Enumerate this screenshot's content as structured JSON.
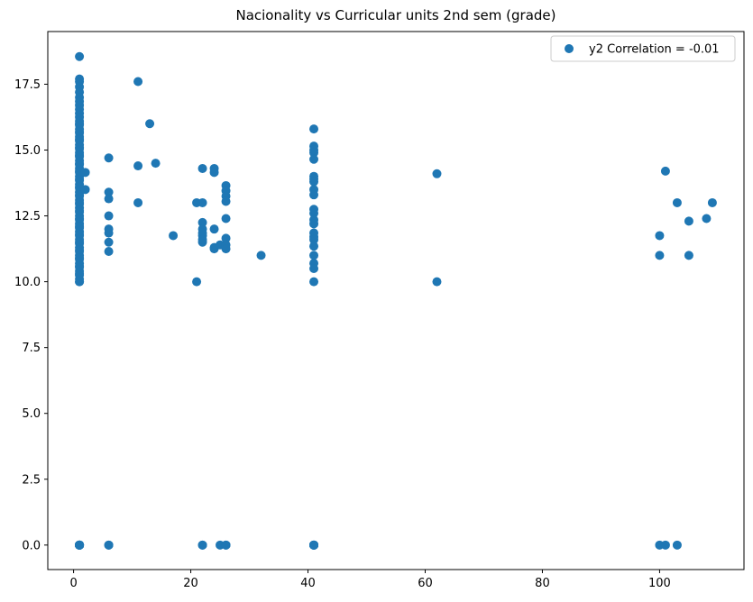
{
  "chart_data": {
    "type": "scatter",
    "title": "Nacionality vs Curricular units 2nd sem (grade)",
    "xlabel": "",
    "ylabel": "",
    "xlim": [
      -4.4,
      114.4
    ],
    "ylim": [
      -0.93,
      19.5
    ],
    "xticks": [
      0,
      20,
      40,
      60,
      80,
      100
    ],
    "xtick_labels": [
      "0",
      "20",
      "40",
      "60",
      "80",
      "100"
    ],
    "yticks": [
      0,
      2.5,
      5,
      7.5,
      10,
      12.5,
      15,
      17.5
    ],
    "ytick_labels": [
      "0.0",
      "2.5",
      "5.0",
      "7.5",
      "10.0",
      "12.5",
      "15.0",
      "17.5"
    ],
    "grid": false,
    "legend_position": "top-right",
    "series": [
      {
        "name": "y2 Correlation = -0.01",
        "color": "#1f77b4",
        "x": [
          1,
          1,
          1,
          1,
          1,
          1,
          1,
          1,
          1,
          1,
          1,
          1,
          1,
          1,
          1,
          1,
          1,
          1,
          1,
          1,
          1,
          1,
          1,
          1,
          1,
          1,
          1,
          1,
          1,
          1,
          1,
          1,
          1,
          1,
          1,
          1,
          1,
          1,
          1,
          1,
          1,
          1,
          1,
          1,
          1,
          1,
          1,
          1,
          1,
          1,
          1,
          1,
          1,
          1,
          1,
          1,
          1,
          1,
          1,
          1,
          1,
          1,
          1,
          1,
          1,
          1,
          1,
          1,
          1,
          1,
          1,
          1,
          1,
          1,
          1,
          1,
          1,
          1,
          1,
          1,
          1,
          1,
          1,
          1,
          1,
          1,
          1,
          1,
          1,
          1,
          2,
          2,
          6,
          6,
          6,
          6,
          6,
          6,
          6,
          6,
          6,
          6,
          11,
          11,
          11,
          13,
          14,
          17,
          21,
          21,
          22,
          22,
          22,
          22,
          22,
          22,
          22,
          22,
          22,
          22,
          24,
          24,
          24,
          24,
          24,
          25,
          25,
          26,
          26,
          26,
          26,
          26,
          26,
          26,
          26,
          26,
          26,
          32,
          41,
          41,
          41,
          41,
          41,
          41,
          41,
          41,
          41,
          41,
          41,
          41,
          41,
          41,
          41,
          41,
          41,
          41,
          41,
          41,
          41,
          41,
          41,
          41,
          41,
          41,
          41,
          41,
          41,
          41,
          62,
          62,
          100,
          100,
          100,
          101,
          101,
          103,
          103,
          105,
          105,
          108,
          109
        ],
        "y": [
          18.55,
          17.7,
          17.6,
          17.4,
          17.2,
          17.0,
          16.85,
          16.7,
          16.55,
          16.4,
          16.25,
          16.1,
          15.95,
          15.8,
          15.65,
          15.5,
          15.35,
          15.2,
          15.05,
          14.9,
          14.75,
          14.6,
          14.45,
          14.3,
          14.15,
          14.0,
          13.85,
          13.7,
          13.55,
          13.4,
          13.25,
          13.1,
          12.95,
          12.8,
          12.65,
          12.5,
          12.35,
          12.2,
          12.05,
          11.9,
          11.75,
          11.6,
          11.45,
          11.3,
          11.15,
          11.0,
          10.85,
          10.7,
          10.55,
          10.4,
          10.25,
          10.1,
          10.0,
          10.0,
          16.0,
          15.7,
          15.4,
          15.1,
          14.8,
          14.5,
          14.2,
          13.9,
          13.6,
          13.3,
          13.0,
          12.7,
          12.4,
          12.1,
          11.8,
          11.5,
          11.2,
          10.9,
          10.6,
          10.3,
          0,
          0,
          0,
          0,
          0,
          0,
          0,
          0,
          0,
          0,
          0,
          0,
          0,
          0,
          0,
          0,
          14.15,
          13.5,
          14.7,
          13.4,
          13.15,
          12.5,
          12.0,
          11.85,
          11.5,
          11.15,
          0,
          0,
          17.6,
          14.4,
          13.0,
          16.0,
          14.5,
          11.75,
          13.0,
          10.0,
          14.3,
          13.0,
          12.25,
          12.0,
          11.75,
          11.5,
          0,
          0,
          11.85,
          11.6,
          14.3,
          14.15,
          12.0,
          11.3,
          11.25,
          11.4,
          0,
          13.65,
          13.45,
          13.25,
          13.05,
          12.4,
          11.65,
          11.4,
          11.25,
          0,
          0,
          11.0,
          15.8,
          15.15,
          15.0,
          14.9,
          14.65,
          14.0,
          13.9,
          13.8,
          13.5,
          13.3,
          12.75,
          12.6,
          12.35,
          12.2,
          11.85,
          11.7,
          11.6,
          11.35,
          11.0,
          10.7,
          10.5,
          10.0,
          0,
          0,
          0,
          0,
          0,
          0,
          0,
          0,
          14.1,
          10.0,
          11.75,
          11.0,
          0,
          14.2,
          0,
          13.0,
          0,
          12.3,
          11.0,
          12.4,
          13.0
        ]
      }
    ]
  }
}
